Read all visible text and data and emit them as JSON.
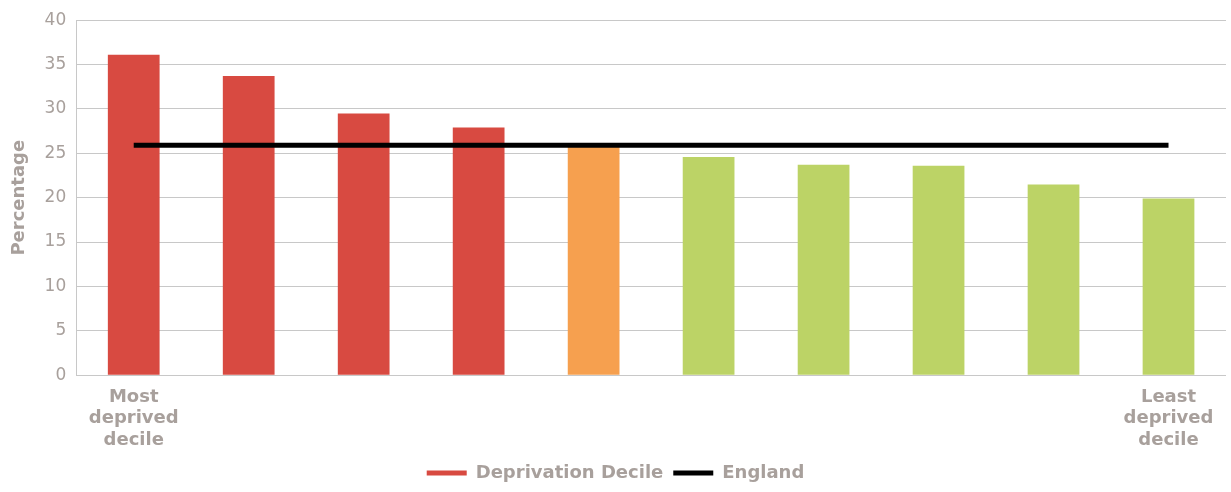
{
  "chart_data": {
    "type": "bar",
    "ylabel": "Percentage",
    "categories": [
      "Most deprived decile",
      null,
      null,
      null,
      null,
      null,
      null,
      null,
      null,
      "Least deprived decile"
    ],
    "series": [
      {
        "name": "Deprivation Decile",
        "color": "#d84a41",
        "colors": [
          "#d84a41",
          "#d84a41",
          "#d84a41",
          "#d84a41",
          "#f6a04f",
          "#bcd366",
          "#bcd366",
          "#bcd366",
          "#bcd366",
          "#bcd366"
        ],
        "values": [
          36.1,
          33.7,
          29.5,
          27.9,
          25.8,
          24.6,
          23.7,
          23.6,
          21.5,
          19.9
        ]
      },
      {
        "name": "England",
        "type": "line",
        "color": "#000000",
        "values": [
          25.9,
          25.9,
          25.9,
          25.9,
          25.9,
          25.9,
          25.9,
          25.9,
          25.9,
          25.9
        ]
      }
    ],
    "ylim": [
      0,
      40
    ],
    "yticks": [
      0,
      5,
      10,
      15,
      20,
      25,
      30,
      35,
      40
    ],
    "grid": "y",
    "legend": "bottom",
    "marker": "none",
    "line_style": "solid"
  }
}
